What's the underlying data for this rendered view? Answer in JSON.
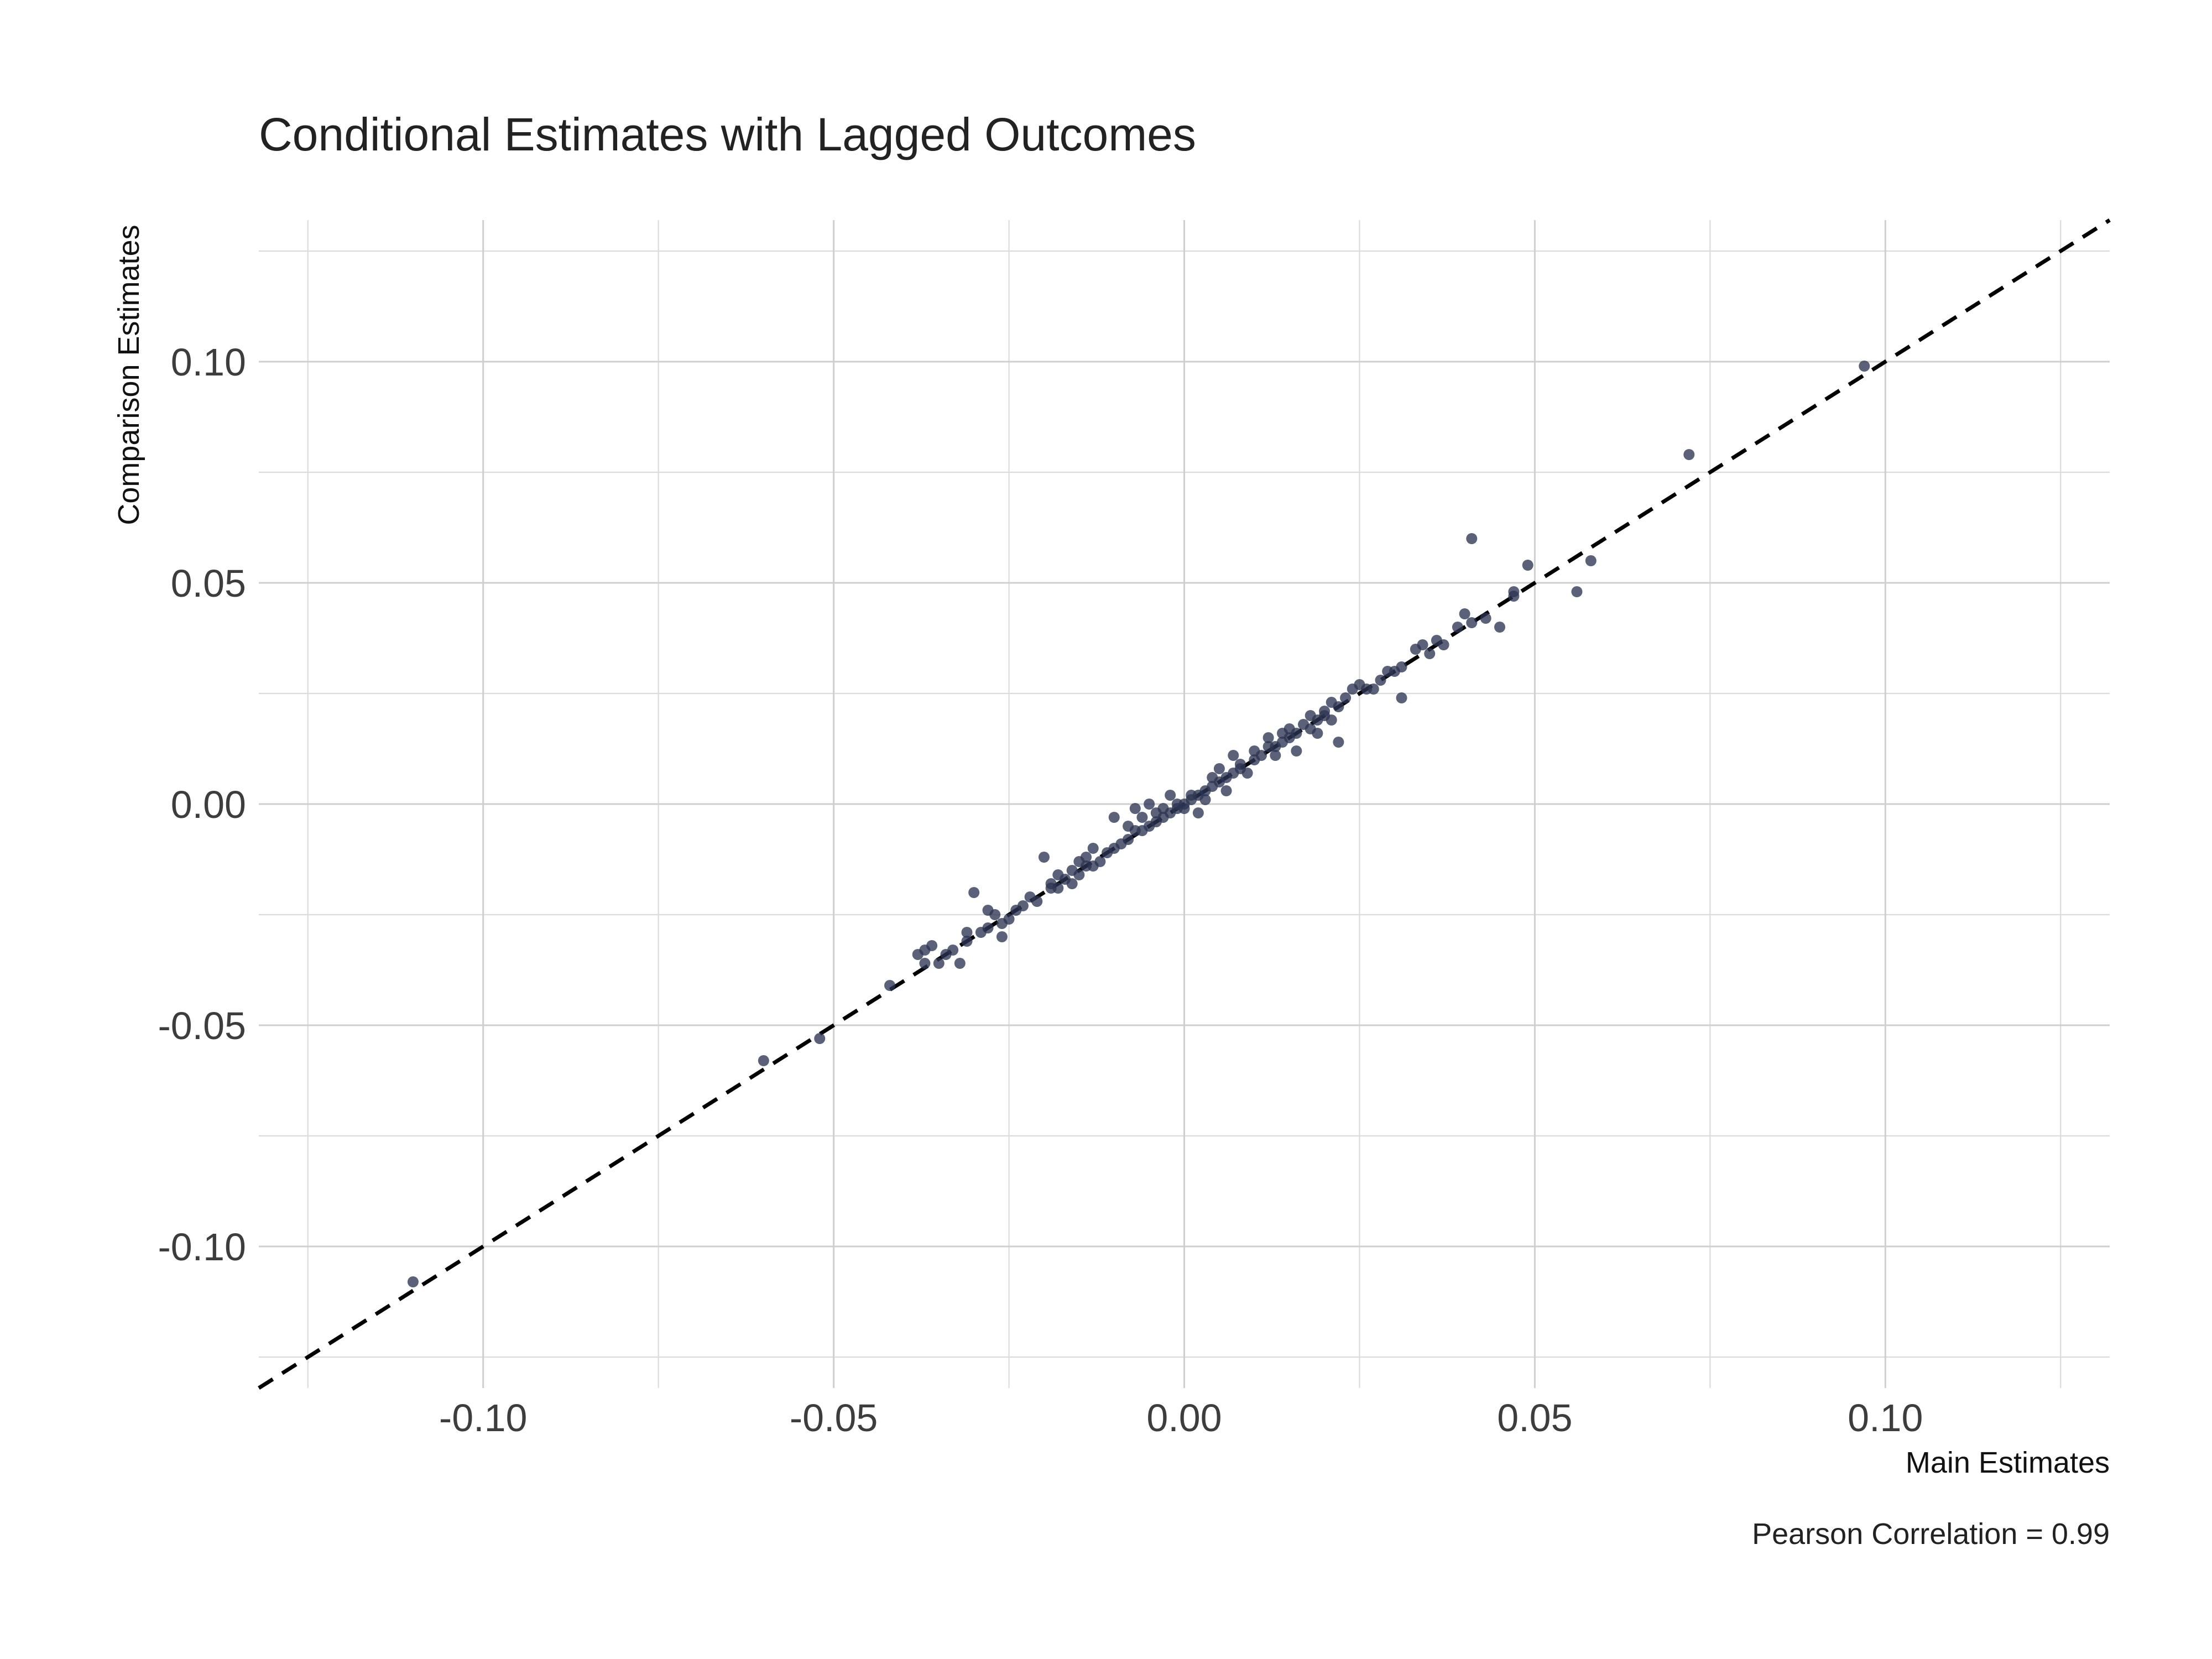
{
  "chart_data": {
    "type": "scatter",
    "title": "Conditional Estimates with Lagged Outcomes",
    "xlabel": "Main Estimates",
    "ylabel": "Comparison Estimates",
    "caption": "Pearson Correlation = 0.99",
    "xlim": [
      -0.132,
      0.132
    ],
    "ylim": [
      -0.132,
      0.132
    ],
    "x_ticks": [
      -0.1,
      -0.05,
      0.0,
      0.05,
      0.1
    ],
    "x_tick_labels": [
      "-0.10",
      "-0.05",
      "0.00",
      "0.05",
      "0.10"
    ],
    "y_ticks": [
      -0.1,
      -0.05,
      0.0,
      0.05,
      0.1
    ],
    "y_tick_labels": [
      "-0.10",
      "-0.05",
      "0.00",
      "0.05",
      "0.10"
    ],
    "minor_ticks": [
      -0.125,
      -0.075,
      -0.025,
      0.025,
      0.075,
      0.125
    ],
    "grid": true,
    "reference_line": {
      "type": "identity",
      "style": "dashed",
      "color": "#000000"
    },
    "point_color": "#2b3552",
    "series": [
      {
        "points": [
          [
            -0.11,
            -0.108
          ],
          [
            -0.06,
            -0.058
          ],
          [
            -0.052,
            -0.053
          ],
          [
            -0.042,
            -0.041
          ],
          [
            -0.038,
            -0.034
          ],
          [
            -0.037,
            -0.033
          ],
          [
            -0.037,
            -0.036
          ],
          [
            -0.036,
            -0.032
          ],
          [
            -0.035,
            -0.036
          ],
          [
            -0.034,
            -0.034
          ],
          [
            -0.033,
            -0.033
          ],
          [
            -0.032,
            -0.036
          ],
          [
            -0.031,
            -0.031
          ],
          [
            -0.031,
            -0.029
          ],
          [
            -0.03,
            -0.02
          ],
          [
            -0.029,
            -0.029
          ],
          [
            -0.028,
            -0.028
          ],
          [
            -0.028,
            -0.024
          ],
          [
            -0.027,
            -0.025
          ],
          [
            -0.026,
            -0.03
          ],
          [
            -0.026,
            -0.027
          ],
          [
            -0.025,
            -0.026
          ],
          [
            -0.024,
            -0.024
          ],
          [
            -0.023,
            -0.023
          ],
          [
            -0.022,
            -0.021
          ],
          [
            -0.021,
            -0.022
          ],
          [
            -0.02,
            -0.012
          ],
          [
            -0.019,
            -0.019
          ],
          [
            -0.019,
            -0.018
          ],
          [
            -0.018,
            -0.016
          ],
          [
            -0.018,
            -0.019
          ],
          [
            -0.017,
            -0.017
          ],
          [
            -0.016,
            -0.018
          ],
          [
            -0.016,
            -0.015
          ],
          [
            -0.015,
            -0.016
          ],
          [
            -0.015,
            -0.013
          ],
          [
            -0.014,
            -0.014
          ],
          [
            -0.014,
            -0.012
          ],
          [
            -0.013,
            -0.01
          ],
          [
            -0.013,
            -0.014
          ],
          [
            -0.012,
            -0.013
          ],
          [
            -0.011,
            -0.011
          ],
          [
            -0.01,
            -0.01
          ],
          [
            -0.01,
            -0.003
          ],
          [
            -0.009,
            -0.009
          ],
          [
            -0.008,
            -0.008
          ],
          [
            -0.008,
            -0.005
          ],
          [
            -0.007,
            -0.006
          ],
          [
            -0.007,
            -0.001
          ],
          [
            -0.006,
            -0.006
          ],
          [
            -0.006,
            -0.003
          ],
          [
            -0.005,
            -0.005
          ],
          [
            -0.005,
            0.0
          ],
          [
            -0.004,
            -0.004
          ],
          [
            -0.004,
            -0.002
          ],
          [
            -0.003,
            -0.003
          ],
          [
            -0.003,
            -0.001
          ],
          [
            -0.002,
            0.002
          ],
          [
            -0.002,
            -0.002
          ],
          [
            -0.001,
            -0.001
          ],
          [
            -0.001,
            0.0
          ],
          [
            0.0,
            0.0
          ],
          [
            0.0,
            -0.001
          ],
          [
            0.001,
            0.001
          ],
          [
            0.001,
            0.002
          ],
          [
            0.002,
            -0.002
          ],
          [
            0.002,
            0.002
          ],
          [
            0.003,
            0.001
          ],
          [
            0.003,
            0.003
          ],
          [
            0.004,
            0.006
          ],
          [
            0.004,
            0.004
          ],
          [
            0.005,
            0.005
          ],
          [
            0.005,
            0.008
          ],
          [
            0.006,
            0.003
          ],
          [
            0.006,
            0.006
          ],
          [
            0.007,
            0.007
          ],
          [
            0.007,
            0.011
          ],
          [
            0.008,
            0.009
          ],
          [
            0.008,
            0.008
          ],
          [
            0.009,
            0.007
          ],
          [
            0.01,
            0.01
          ],
          [
            0.01,
            0.012
          ],
          [
            0.011,
            0.011
          ],
          [
            0.012,
            0.013
          ],
          [
            0.012,
            0.015
          ],
          [
            0.013,
            0.013
          ],
          [
            0.013,
            0.011
          ],
          [
            0.014,
            0.016
          ],
          [
            0.014,
            0.014
          ],
          [
            0.015,
            0.017
          ],
          [
            0.015,
            0.015
          ],
          [
            0.016,
            0.012
          ],
          [
            0.016,
            0.016
          ],
          [
            0.017,
            0.018
          ],
          [
            0.018,
            0.017
          ],
          [
            0.018,
            0.02
          ],
          [
            0.019,
            0.019
          ],
          [
            0.019,
            0.016
          ],
          [
            0.02,
            0.021
          ],
          [
            0.02,
            0.02
          ],
          [
            0.021,
            0.019
          ],
          [
            0.021,
            0.023
          ],
          [
            0.022,
            0.014
          ],
          [
            0.022,
            0.022
          ],
          [
            0.023,
            0.024
          ],
          [
            0.024,
            0.026
          ],
          [
            0.025,
            0.027
          ],
          [
            0.026,
            0.026
          ],
          [
            0.027,
            0.026
          ],
          [
            0.028,
            0.028
          ],
          [
            0.029,
            0.03
          ],
          [
            0.03,
            0.03
          ],
          [
            0.031,
            0.024
          ],
          [
            0.031,
            0.031
          ],
          [
            0.033,
            0.035
          ],
          [
            0.034,
            0.036
          ],
          [
            0.035,
            0.034
          ],
          [
            0.036,
            0.037
          ],
          [
            0.037,
            0.036
          ],
          [
            0.039,
            0.04
          ],
          [
            0.04,
            0.043
          ],
          [
            0.041,
            0.041
          ],
          [
            0.041,
            0.06
          ],
          [
            0.043,
            0.042
          ],
          [
            0.045,
            0.04
          ],
          [
            0.047,
            0.047
          ],
          [
            0.047,
            0.048
          ],
          [
            0.049,
            0.054
          ],
          [
            0.056,
            0.048
          ],
          [
            0.058,
            0.055
          ],
          [
            0.072,
            0.079
          ],
          [
            0.097,
            0.099
          ]
        ]
      }
    ]
  }
}
